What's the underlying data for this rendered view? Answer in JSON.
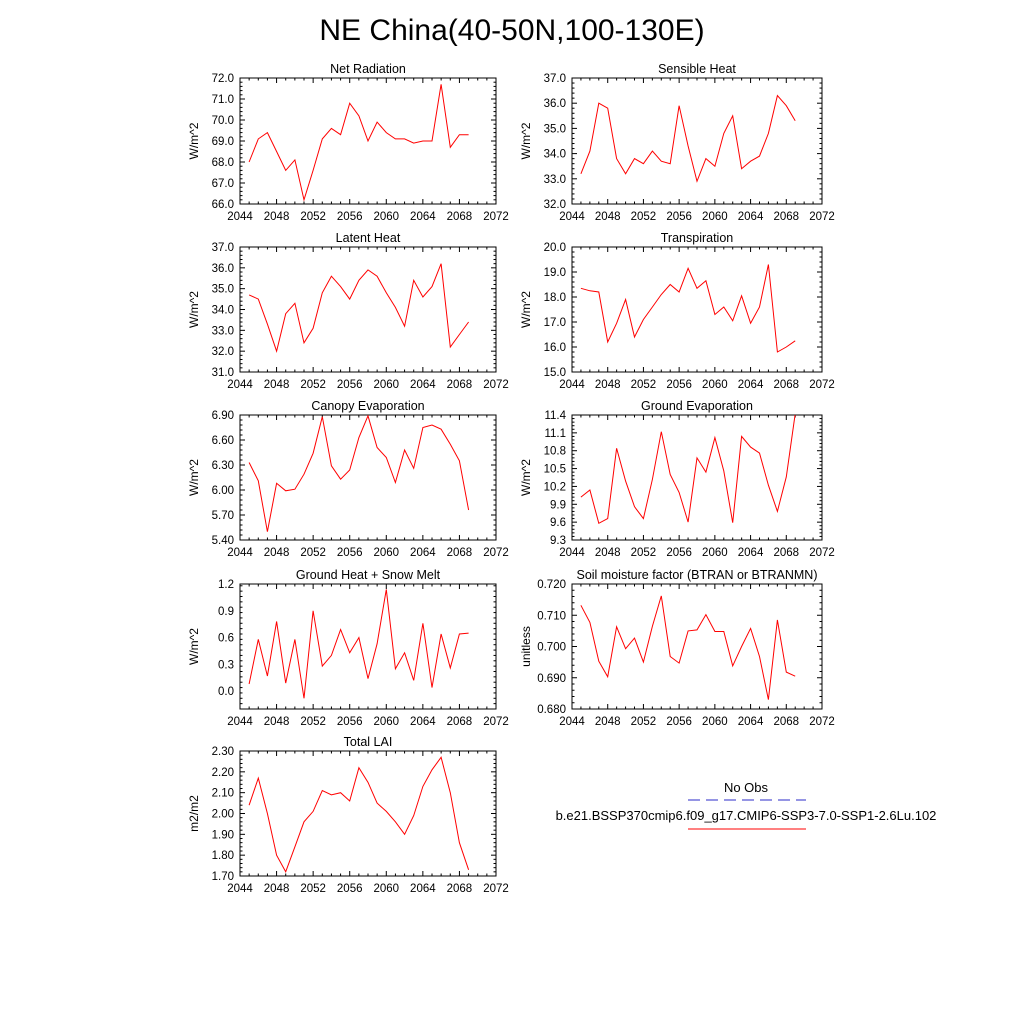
{
  "figure": {
    "title": "NE China(40-50N,100-130E)"
  },
  "legend": {
    "obs_label": "No Obs",
    "obs_color": "#2b2bc8",
    "case_label": "b.e21.BSSP370cmip6.f09_g17.CMIP6-SSP3-7.0-SSP1-2.6Lu.102",
    "case_color": "#ff0000"
  },
  "chart_data": [
    {
      "type": "line",
      "title": "Net Radiation",
      "ylabel": "W/m^2",
      "xlim": [
        2044,
        2072
      ],
      "xticks": [
        2044,
        2048,
        2052,
        2056,
        2060,
        2064,
        2068,
        2072
      ],
      "ylim": [
        66.0,
        72.0
      ],
      "yticks": [
        "66.0",
        "67.0",
        "68.0",
        "69.0",
        "70.0",
        "71.0",
        "72.0"
      ],
      "series": [
        {
          "x": [
            2045,
            2046,
            2047,
            2048,
            2049,
            2050,
            2051,
            2052,
            2053,
            2054,
            2055,
            2056,
            2057,
            2058,
            2059,
            2060,
            2061,
            2062,
            2063,
            2064,
            2065,
            2066,
            2067,
            2068,
            2069
          ],
          "values": [
            68.0,
            69.1,
            69.4,
            68.5,
            67.6,
            68.1,
            66.2,
            67.6,
            69.1,
            69.6,
            69.3,
            70.8,
            70.2,
            69.0,
            69.9,
            69.4,
            69.1,
            69.1,
            68.9,
            69.0,
            69.0,
            71.7,
            68.7,
            69.3,
            69.3
          ]
        }
      ]
    },
    {
      "type": "line",
      "title": "Sensible Heat",
      "ylabel": "W/m^2",
      "xlim": [
        2044,
        2072
      ],
      "xticks": [
        2044,
        2048,
        2052,
        2056,
        2060,
        2064,
        2068,
        2072
      ],
      "ylim": [
        32.0,
        37.0
      ],
      "yticks": [
        "32.0",
        "33.0",
        "34.0",
        "35.0",
        "36.0",
        "37.0"
      ],
      "series": [
        {
          "x": [
            2045,
            2046,
            2047,
            2048,
            2049,
            2050,
            2051,
            2052,
            2053,
            2054,
            2055,
            2056,
            2057,
            2058,
            2059,
            2060,
            2061,
            2062,
            2063,
            2064,
            2065,
            2066,
            2067,
            2068,
            2069
          ],
          "values": [
            33.2,
            34.1,
            36.0,
            35.8,
            33.8,
            33.2,
            33.8,
            33.6,
            34.1,
            33.7,
            33.6,
            35.9,
            34.3,
            32.9,
            33.8,
            33.5,
            34.8,
            35.5,
            33.4,
            33.7,
            33.9,
            34.8,
            36.3,
            35.9,
            35.3
          ]
        }
      ]
    },
    {
      "type": "line",
      "title": "Latent Heat",
      "ylabel": "W/m^2",
      "xlim": [
        2044,
        2072
      ],
      "xticks": [
        2044,
        2048,
        2052,
        2056,
        2060,
        2064,
        2068,
        2072
      ],
      "ylim": [
        31.0,
        37.0
      ],
      "yticks": [
        "31.0",
        "32.0",
        "33.0",
        "34.0",
        "35.0",
        "36.0",
        "37.0"
      ],
      "series": [
        {
          "x": [
            2045,
            2046,
            2047,
            2048,
            2049,
            2050,
            2051,
            2052,
            2053,
            2054,
            2055,
            2056,
            2057,
            2058,
            2059,
            2060,
            2061,
            2062,
            2063,
            2064,
            2065,
            2066,
            2067,
            2068,
            2069
          ],
          "values": [
            34.7,
            34.5,
            33.3,
            32.0,
            33.8,
            34.3,
            32.4,
            33.1,
            34.8,
            35.6,
            35.1,
            34.5,
            35.4,
            35.9,
            35.6,
            34.8,
            34.1,
            33.2,
            35.4,
            34.6,
            35.1,
            36.2,
            32.2,
            32.8,
            33.4
          ]
        }
      ]
    },
    {
      "type": "line",
      "title": "Transpiration",
      "ylabel": "W/m^2",
      "xlim": [
        2044,
        2072
      ],
      "xticks": [
        2044,
        2048,
        2052,
        2056,
        2060,
        2064,
        2068,
        2072
      ],
      "ylim": [
        15.0,
        20.0
      ],
      "yticks": [
        "15.0",
        "16.0",
        "17.0",
        "18.0",
        "19.0",
        "20.0"
      ],
      "series": [
        {
          "x": [
            2045,
            2046,
            2047,
            2048,
            2049,
            2050,
            2051,
            2052,
            2053,
            2054,
            2055,
            2056,
            2057,
            2058,
            2059,
            2060,
            2061,
            2062,
            2063,
            2064,
            2065,
            2066,
            2067,
            2068,
            2069
          ],
          "values": [
            18.35,
            18.25,
            18.2,
            16.2,
            16.95,
            17.9,
            16.4,
            17.1,
            17.6,
            18.1,
            18.5,
            18.2,
            19.15,
            18.35,
            18.65,
            17.3,
            17.6,
            17.05,
            18.05,
            16.95,
            17.6,
            19.3,
            15.8,
            16.0,
            16.25
          ]
        }
      ]
    },
    {
      "type": "line",
      "title": "Canopy Evaporation",
      "ylabel": "W/m^2",
      "xlim": [
        2044,
        2072
      ],
      "xticks": [
        2044,
        2048,
        2052,
        2056,
        2060,
        2064,
        2068,
        2072
      ],
      "ylim": [
        5.4,
        6.9
      ],
      "yticks": [
        "5.40",
        "5.70",
        "6.00",
        "6.30",
        "6.60",
        "6.90"
      ],
      "series": [
        {
          "x": [
            2045,
            2046,
            2047,
            2048,
            2049,
            2050,
            2051,
            2052,
            2053,
            2054,
            2055,
            2056,
            2057,
            2058,
            2059,
            2060,
            2061,
            2062,
            2063,
            2064,
            2065,
            2066,
            2067,
            2068,
            2069
          ],
          "values": [
            6.33,
            6.11,
            5.5,
            6.08,
            5.99,
            6.01,
            6.19,
            6.44,
            6.88,
            6.29,
            6.13,
            6.24,
            6.63,
            6.89,
            6.51,
            6.39,
            6.09,
            6.48,
            6.26,
            6.75,
            6.78,
            6.73,
            6.55,
            6.35,
            5.76
          ]
        }
      ]
    },
    {
      "type": "line",
      "title": "Ground Evaporation",
      "ylabel": "W/m^2",
      "xlim": [
        2044,
        2072
      ],
      "xticks": [
        2044,
        2048,
        2052,
        2056,
        2060,
        2064,
        2068,
        2072
      ],
      "ylim": [
        9.3,
        11.4
      ],
      "yticks": [
        "9.3",
        "9.6",
        "9.9",
        "10.2",
        "10.5",
        "10.8",
        "11.1",
        "11.4"
      ],
      "series": [
        {
          "x": [
            2045,
            2046,
            2047,
            2048,
            2049,
            2050,
            2051,
            2052,
            2053,
            2054,
            2055,
            2056,
            2057,
            2058,
            2059,
            2060,
            2061,
            2062,
            2063,
            2064,
            2065,
            2066,
            2067,
            2068,
            2069
          ],
          "values": [
            10.02,
            10.14,
            9.58,
            9.66,
            10.84,
            10.29,
            9.86,
            9.66,
            10.32,
            11.12,
            10.4,
            10.1,
            9.6,
            10.68,
            10.44,
            11.02,
            10.46,
            9.59,
            11.04,
            10.86,
            10.76,
            10.22,
            9.78,
            10.36,
            11.42
          ]
        }
      ]
    },
    {
      "type": "line",
      "title": "Ground Heat + Snow Melt",
      "ylabel": "W/m^2",
      "xlim": [
        2044,
        2072
      ],
      "xticks": [
        2044,
        2048,
        2052,
        2056,
        2060,
        2064,
        2068,
        2072
      ],
      "ylim": [
        -0.2,
        1.2
      ],
      "yticks": [
        "0.0",
        "0.3",
        "0.6",
        "0.9",
        "1.2"
      ],
      "ytick_values": [
        0.0,
        0.3,
        0.6,
        0.9,
        1.2
      ],
      "series": [
        {
          "x": [
            2045,
            2046,
            2047,
            2048,
            2049,
            2050,
            2051,
            2052,
            2053,
            2054,
            2055,
            2056,
            2057,
            2058,
            2059,
            2060,
            2061,
            2062,
            2063,
            2064,
            2065,
            2066,
            2067,
            2068,
            2069
          ],
          "values": [
            0.08,
            0.58,
            0.17,
            0.78,
            0.09,
            0.58,
            -0.08,
            0.9,
            0.28,
            0.4,
            0.69,
            0.43,
            0.6,
            0.14,
            0.53,
            1.14,
            0.25,
            0.43,
            0.12,
            0.76,
            0.04,
            0.64,
            0.26,
            0.64,
            0.65
          ]
        }
      ]
    },
    {
      "type": "line",
      "title": "Soil moisture factor (BTRAN or BTRANMN)",
      "ylabel": "unitless",
      "xlim": [
        2044,
        2072
      ],
      "xticks": [
        2044,
        2048,
        2052,
        2056,
        2060,
        2064,
        2068,
        2072
      ],
      "ylim": [
        0.68,
        0.72
      ],
      "yticks": [
        "0.680",
        "0.690",
        "0.700",
        "0.710",
        "0.720"
      ],
      "series": [
        {
          "x": [
            2045,
            2046,
            2047,
            2048,
            2049,
            2050,
            2051,
            2052,
            2053,
            2054,
            2055,
            2056,
            2057,
            2058,
            2059,
            2060,
            2061,
            2062,
            2063,
            2064,
            2065,
            2066,
            2067,
            2068,
            2069
          ],
          "values": [
            0.7132,
            0.7077,
            0.6953,
            0.6903,
            0.7063,
            0.6993,
            0.7027,
            0.695,
            0.7065,
            0.7162,
            0.6968,
            0.6947,
            0.705,
            0.7053,
            0.7102,
            0.7048,
            0.7048,
            0.6938,
            0.7,
            0.7058,
            0.6968,
            0.683,
            0.7085,
            0.6918,
            0.6905
          ]
        }
      ]
    },
    {
      "type": "line",
      "title": "Total LAI",
      "ylabel": "m2/m2",
      "xlim": [
        2044,
        2072
      ],
      "xticks": [
        2044,
        2048,
        2052,
        2056,
        2060,
        2064,
        2068,
        2072
      ],
      "ylim": [
        1.7,
        2.3
      ],
      "yticks": [
        "1.70",
        "1.80",
        "1.90",
        "2.00",
        "2.10",
        "2.20",
        "2.30"
      ],
      "series": [
        {
          "x": [
            2045,
            2046,
            2047,
            2048,
            2049,
            2050,
            2051,
            2052,
            2053,
            2054,
            2055,
            2056,
            2057,
            2058,
            2059,
            2060,
            2061,
            2062,
            2063,
            2064,
            2065,
            2066,
            2067,
            2068,
            2069
          ],
          "values": [
            2.04,
            2.17,
            2.0,
            1.8,
            1.72,
            1.84,
            1.96,
            2.01,
            2.11,
            2.09,
            2.1,
            2.06,
            2.22,
            2.15,
            2.05,
            2.01,
            1.96,
            1.9,
            1.99,
            2.13,
            2.21,
            2.27,
            2.1,
            1.86,
            1.73
          ]
        }
      ]
    }
  ]
}
